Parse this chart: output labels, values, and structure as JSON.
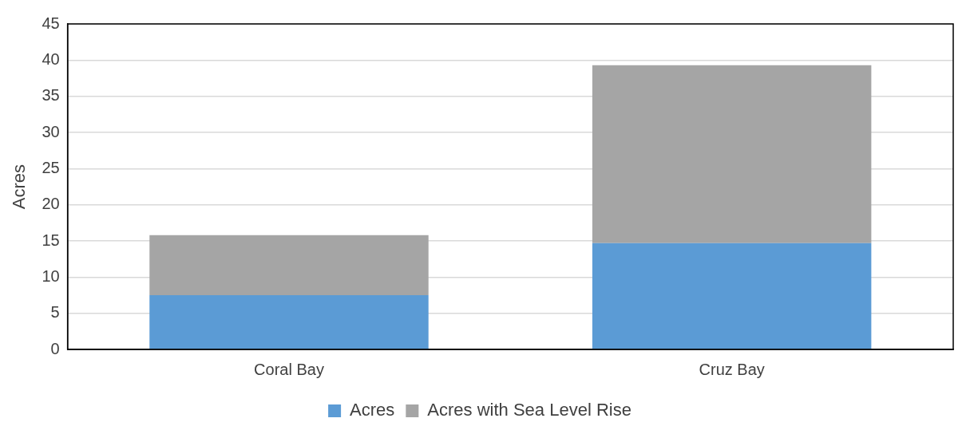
{
  "chart_data": {
    "type": "bar",
    "stacked": true,
    "ylabel": "Acres",
    "categories": [
      "Coral Bay",
      "Cruz Bay"
    ],
    "series": [
      {
        "name": "Acres",
        "color": "#5b9bd5",
        "values": [
          7.5,
          14.7
        ]
      },
      {
        "name": "Acres with Sea Level Rise",
        "color": "#a5a5a5",
        "values": [
          8.3,
          24.6
        ]
      }
    ],
    "ylim": [
      0,
      45
    ],
    "yticks": [
      0,
      5,
      10,
      15,
      20,
      25,
      30,
      35,
      40,
      45
    ],
    "grid": "y",
    "legend": "bottom"
  }
}
